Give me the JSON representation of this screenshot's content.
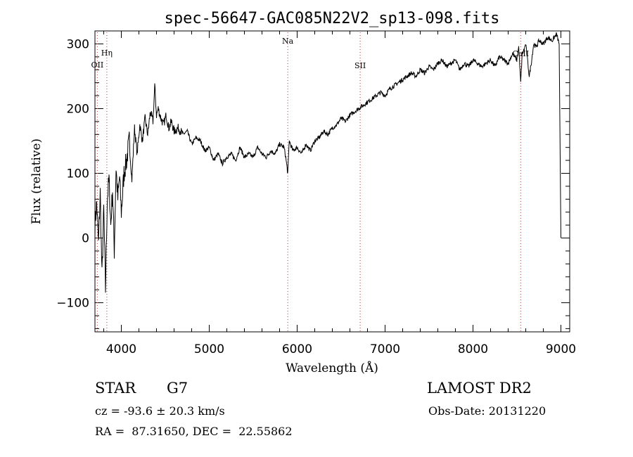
{
  "chart_data": {
    "type": "line",
    "title": "spec-56647-GAC085N22V2_sp13-098.fits",
    "xlabel": "Wavelength (Å)",
    "ylabel": "Flux (relative)",
    "xlim": [
      3700,
      9100
    ],
    "ylim": [
      -145,
      320
    ],
    "xticks": [
      4000,
      5000,
      6000,
      7000,
      8000,
      9000
    ],
    "yticks": [
      -100,
      0,
      100,
      200,
      300
    ],
    "grid": false,
    "series": [
      {
        "x": [
          3700,
          3720,
          3740,
          3760,
          3780,
          3800,
          3820,
          3840,
          3860,
          3880,
          3900,
          3920,
          3940,
          3960,
          3980,
          4000,
          4030,
          4060,
          4090,
          4120,
          4150,
          4180,
          4210,
          4240,
          4270,
          4300,
          4330,
          4360,
          4380,
          4400,
          4420,
          4450,
          4480,
          4510,
          4540,
          4570,
          4600,
          4650,
          4700,
          4750,
          4800,
          4850,
          4900,
          4950,
          5000,
          5050,
          5100,
          5150,
          5200,
          5250,
          5300,
          5350,
          5400,
          5450,
          5500,
          5550,
          5600,
          5650,
          5700,
          5750,
          5800,
          5850,
          5870,
          5893,
          5910,
          5950,
          6000,
          6050,
          6100,
          6150,
          6200,
          6250,
          6300,
          6350,
          6400,
          6450,
          6500,
          6550,
          6600,
          6650,
          6700,
          6750,
          6800,
          6850,
          6900,
          6950,
          7000,
          7050,
          7100,
          7150,
          7200,
          7250,
          7300,
          7350,
          7400,
          7450,
          7500,
          7550,
          7600,
          7650,
          7700,
          7750,
          7800,
          7850,
          7900,
          7950,
          8000,
          8050,
          8100,
          8150,
          8200,
          8250,
          8300,
          8350,
          8400,
          8450,
          8498,
          8520,
          8542,
          8560,
          8580,
          8600,
          8640,
          8662,
          8690,
          8720,
          8750,
          8800,
          8850,
          8900,
          8950,
          8980,
          9000
        ],
        "y": [
          20,
          55,
          -10,
          70,
          -60,
          45,
          -80,
          60,
          90,
          20,
          75,
          -20,
          110,
          60,
          95,
          40,
          100,
          120,
          150,
          90,
          170,
          130,
          175,
          150,
          185,
          160,
          195,
          180,
          235,
          190,
          200,
          185,
          175,
          190,
          170,
          180,
          165,
          170,
          160,
          165,
          145,
          155,
          150,
          135,
          140,
          120,
          130,
          115,
          125,
          130,
          120,
          140,
          125,
          130,
          125,
          140,
          130,
          125,
          135,
          130,
          145,
          140,
          125,
          100,
          150,
          135,
          140,
          130,
          145,
          135,
          150,
          155,
          165,
          160,
          170,
          175,
          185,
          180,
          190,
          195,
          200,
          205,
          210,
          215,
          220,
          225,
          220,
          230,
          235,
          240,
          245,
          250,
          255,
          250,
          260,
          255,
          265,
          260,
          270,
          275,
          265,
          270,
          275,
          260,
          270,
          265,
          275,
          270,
          265,
          270,
          275,
          265,
          280,
          275,
          270,
          285,
          275,
          295,
          240,
          285,
          290,
          300,
          250,
          270,
          300,
          295,
          305,
          300,
          310,
          305,
          315,
          300,
          0
        ],
        "color": "#000000"
      }
    ],
    "lines": [
      {
        "label": "OII",
        "x": 3727
      },
      {
        "label": "Hη",
        "x": 3835
      },
      {
        "label": "Na",
        "x": 5893
      },
      {
        "label": "SII",
        "x": 6717
      },
      {
        "label": "CaII",
        "x": 8542
      }
    ],
    "line_color": "#cc3333"
  },
  "info": {
    "class": "STAR",
    "subclass": "G7",
    "survey": "LAMOST DR2",
    "cz": "cz = -93.6 ± 20.3 km/s",
    "obs_date": "Obs-Date: 20131220",
    "radec": "RA =  87.31650, DEC =  22.55862"
  }
}
